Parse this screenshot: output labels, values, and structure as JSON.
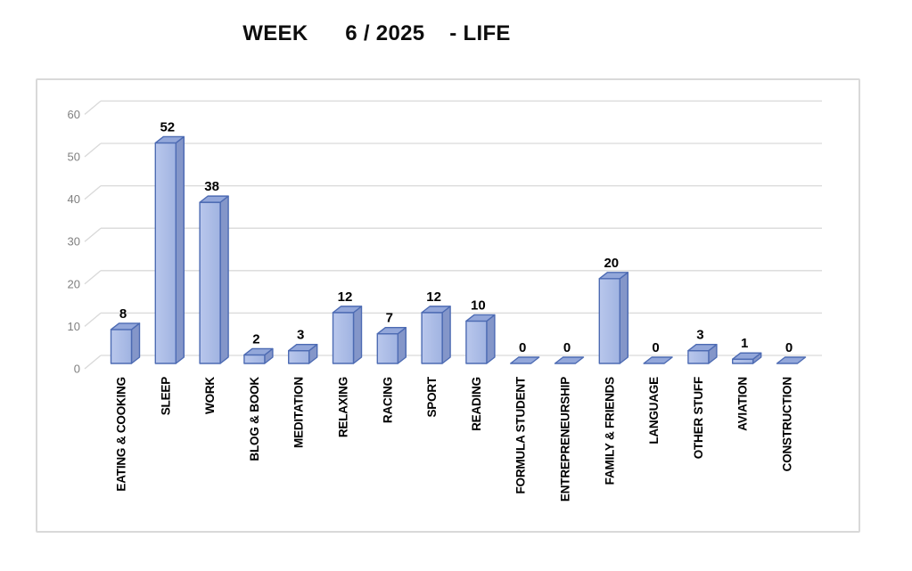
{
  "title": "WEEK      6 / 2025    - LIFE",
  "chart_data": {
    "type": "bar",
    "style": "3d",
    "title": "WEEK      6 / 2025    - LIFE",
    "categories": [
      "EATING & COOKING",
      "SLEEP",
      "WORK",
      "BLOG & BOOK",
      "MEDITATION",
      "RELAXING",
      "RACING",
      "SPORT",
      "READING",
      "FORMULA STUDENT",
      "ENTREPRENEURSHIP",
      "FAMILY & FRIENDS",
      "LANGUAGE",
      "OTHER STUFF",
      "AVIATION",
      "CONSTRUCTION"
    ],
    "values": [
      8,
      52,
      38,
      2,
      3,
      12,
      7,
      12,
      10,
      0,
      0,
      20,
      0,
      3,
      1,
      0
    ],
    "xlabel": "",
    "ylabel": "",
    "ylim": [
      0,
      60
    ],
    "yticks": [
      0,
      10,
      20,
      30,
      40,
      50,
      60
    ],
    "grid": true,
    "legend": false,
    "data_labels": true,
    "colors": {
      "bar_front_light": "#b9c7ec",
      "bar_front_dark": "#a0b3e1",
      "bar_side": "#8496c9",
      "bar_top": "#93a7da",
      "bar_border": "#4d6bb3",
      "gridline": "#d9d9d9",
      "axis_text": "#7f7f7f",
      "label_text": "#000000",
      "chart_border": "#d9d9d9",
      "background": "#ffffff"
    }
  }
}
